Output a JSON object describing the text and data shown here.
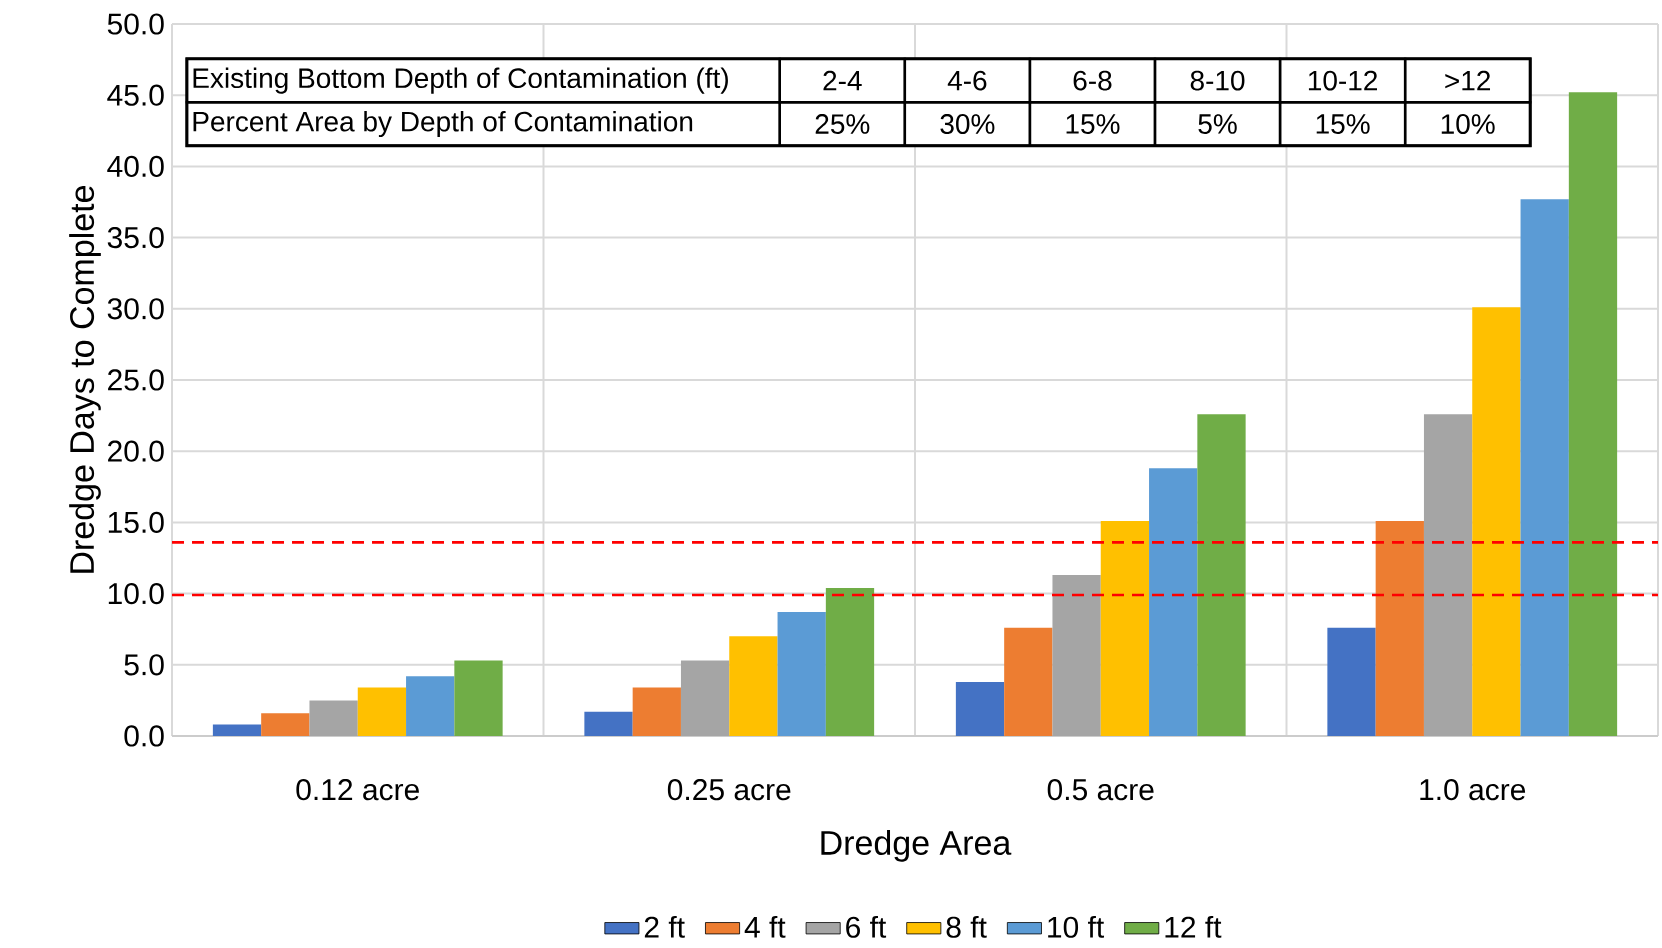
{
  "chart_data": {
    "type": "bar",
    "xlabel": "Dredge Area",
    "ylabel": "Dredge Days to Complete",
    "categories": [
      "0.12 acre",
      "0.25 acre",
      "0.5 acre",
      "1.0 acre"
    ],
    "series": [
      {
        "name": "2 ft",
        "color": "#4472c4",
        "values": [
          0.8,
          1.7,
          3.8,
          7.6
        ]
      },
      {
        "name": "4 ft",
        "color": "#ed7d31",
        "values": [
          1.6,
          3.4,
          7.6,
          15.1
        ]
      },
      {
        "name": "6 ft",
        "color": "#a5a5a5",
        "values": [
          2.5,
          5.3,
          11.3,
          22.6
        ]
      },
      {
        "name": "8 ft",
        "color": "#ffc000",
        "values": [
          3.4,
          7.0,
          15.1,
          30.1
        ]
      },
      {
        "name": "10 ft",
        "color": "#5b9bd5",
        "values": [
          4.2,
          8.7,
          18.8,
          37.7
        ]
      },
      {
        "name": "12 ft",
        "color": "#70ad47",
        "values": [
          5.3,
          10.4,
          22.6,
          45.2
        ]
      }
    ],
    "ylim": [
      0,
      50
    ],
    "yticks": [
      {
        "value": 0,
        "label": "0.0"
      },
      {
        "value": 5,
        "label": "5.0"
      },
      {
        "value": 10,
        "label": "10.0"
      },
      {
        "value": 15,
        "label": "15.0"
      },
      {
        "value": 20,
        "label": "20.0"
      },
      {
        "value": 25,
        "label": "25.0"
      },
      {
        "value": 30,
        "label": "30.0"
      },
      {
        "value": 35,
        "label": "35.0"
      },
      {
        "value": 40,
        "label": "40.0"
      },
      {
        "value": 45,
        "label": "45.0"
      },
      {
        "value": 50,
        "label": "50.0"
      }
    ],
    "grid": true,
    "legend": "bottom",
    "ref_lines": [
      {
        "axis": "y",
        "value": 9.9,
        "color": "#ff0000",
        "line_style": "dashed"
      },
      {
        "axis": "y",
        "value": 13.6,
        "color": "#ff0000",
        "line_style": "dashed"
      }
    ],
    "annotations": [
      "Existing Bottom Depth of Contamination (ft)",
      "2-4",
      "4-6",
      "6-8",
      "8-10",
      "10-12",
      ">12",
      "Percent Area by Depth of Contamination",
      "25%",
      "30%",
      "15%",
      "5%",
      "15%",
      "10%"
    ]
  }
}
